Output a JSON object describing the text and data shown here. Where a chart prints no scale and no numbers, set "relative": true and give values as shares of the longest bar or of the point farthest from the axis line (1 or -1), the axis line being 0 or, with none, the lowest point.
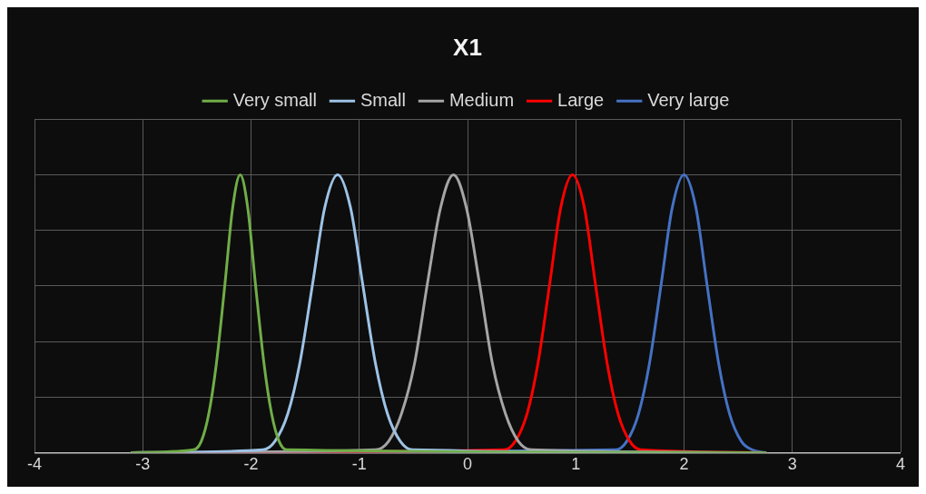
{
  "chart_data": {
    "type": "line",
    "title": "X1",
    "relative": true,
    "grid": true,
    "legend": "top",
    "marker": "none",
    "line_style": "solid",
    "xlim": [
      -4,
      4
    ],
    "xticks": [
      -4,
      -3,
      -2,
      -1,
      0,
      1,
      2,
      3,
      4
    ],
    "series": [
      {
        "name": "Very small",
        "color": "#70ad47",
        "x": [
          -3.1,
          -2.53,
          -2.46,
          -2.39,
          -2.32,
          -2.24,
          -2.17,
          -2.1,
          -2.03,
          -1.96,
          -1.88,
          -1.81,
          -1.74,
          -1.67,
          2.75
        ],
        "values": [
          0,
          0.01,
          0.04,
          0.14,
          0.32,
          0.61,
          0.88,
          1,
          0.88,
          0.61,
          0.32,
          0.14,
          0.04,
          0.01,
          0
        ]
      },
      {
        "name": "Small",
        "color": "#9dc3e6",
        "x": [
          -3.1,
          -1.89,
          -1.78,
          -1.66,
          -1.55,
          -1.43,
          -1.32,
          -1.2,
          -1.08,
          -0.97,
          -0.85,
          -0.74,
          -0.62,
          -0.51,
          2.75
        ],
        "values": [
          0,
          0.01,
          0.04,
          0.14,
          0.32,
          0.61,
          0.88,
          1,
          0.88,
          0.61,
          0.32,
          0.14,
          0.04,
          0.01,
          0
        ]
      },
      {
        "name": "Medium",
        "color": "#a5a5a5",
        "x": [
          -3.1,
          -0.85,
          -0.73,
          -0.61,
          -0.49,
          -0.37,
          -0.25,
          -0.13,
          -0.01,
          0.11,
          0.23,
          0.35,
          0.47,
          0.59,
          2.75
        ],
        "values": [
          0,
          0.01,
          0.04,
          0.14,
          0.32,
          0.61,
          0.88,
          1,
          0.88,
          0.61,
          0.32,
          0.14,
          0.04,
          0.01,
          0
        ]
      },
      {
        "name": "Large",
        "color": "#ff0000",
        "x": [
          -3.1,
          0.34,
          0.44,
          0.55,
          0.65,
          0.76,
          0.86,
          0.97,
          1.08,
          1.18,
          1.29,
          1.39,
          1.5,
          1.6,
          2.75
        ],
        "values": [
          0,
          0.01,
          0.04,
          0.14,
          0.32,
          0.61,
          0.88,
          1,
          0.88,
          0.61,
          0.32,
          0.14,
          0.04,
          0.01,
          0
        ]
      },
      {
        "name": "Very large",
        "color": "#4472c4",
        "x": [
          -3.1,
          1.37,
          1.47,
          1.58,
          1.68,
          1.79,
          1.89,
          2.0,
          2.11,
          2.21,
          2.32,
          2.42,
          2.53,
          2.63,
          2.75
        ],
        "values": [
          0,
          0.01,
          0.04,
          0.14,
          0.32,
          0.61,
          0.88,
          1,
          0.88,
          0.61,
          0.32,
          0.14,
          0.04,
          0.01,
          0
        ]
      }
    ]
  }
}
